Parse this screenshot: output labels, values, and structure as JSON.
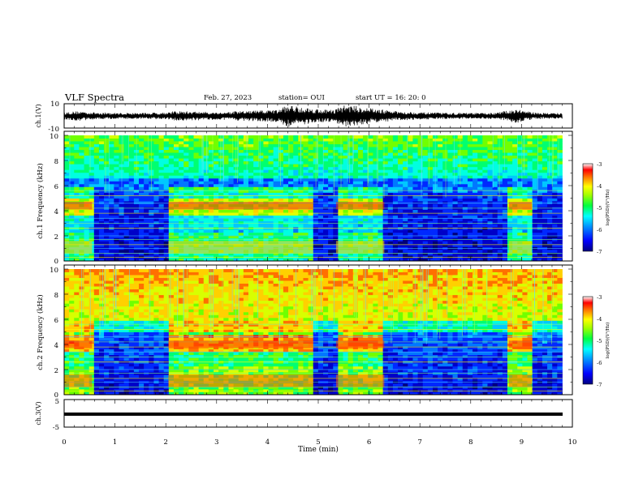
{
  "header": {
    "title": "VLF Spectra",
    "date": "Feb. 27, 2023",
    "station": "station= OUI",
    "start": "start  UT =   16: 20: 0"
  },
  "colorbar": {
    "label": "log(PSD)(V²/Hz)",
    "ticks": [
      "-3",
      "-4",
      "-5",
      "-6",
      "-7"
    ],
    "palette": [
      "#0000a0",
      "#0000ff",
      "#0080ff",
      "#00e0ff",
      "#00ff80",
      "#80ff00",
      "#ffff00",
      "#ff8000",
      "#ff0000",
      "#ffffff"
    ]
  },
  "chart_data": [
    {
      "type": "line",
      "name": "ch1-waveform",
      "ylabel": "ch.1(V)",
      "ylim": [
        -10,
        10
      ],
      "yticks": [
        "10",
        "-10"
      ],
      "x": [
        0.0,
        0.3,
        0.6,
        1.0,
        1.5,
        2.0,
        2.2,
        2.8,
        3.0,
        3.5,
        3.8,
        4.2,
        4.4,
        4.6,
        4.9,
        5.3,
        5.5,
        5.8,
        6.1,
        6.5,
        7.0,
        7.5,
        8.0,
        8.5,
        8.9,
        9.2,
        9.5,
        9.8
      ],
      "envelope": [
        3,
        4,
        3,
        2.5,
        2.5,
        3,
        4,
        3.5,
        3,
        4,
        4.5,
        5,
        9,
        8,
        6,
        5,
        9,
        8,
        6,
        4,
        3,
        2.5,
        2.5,
        2.5,
        6,
        3,
        2.5,
        2.5
      ]
    },
    {
      "type": "heatmap",
      "name": "ch1-spectrogram",
      "ylabel": "ch.1 Frequency (kHz)",
      "ylim": [
        0,
        10
      ],
      "yticks": [
        "0",
        "2",
        "4",
        "6",
        "8",
        "10"
      ],
      "xlim": [
        0,
        10
      ],
      "active_intervals_min": [
        [
          0.0,
          0.55
        ],
        [
          2.05,
          4.9
        ],
        [
          5.35,
          6.3
        ],
        [
          8.75,
          9.2
        ]
      ],
      "broadband_peak_kHz": 4.4,
      "bands_kHz": [
        0.3,
        0.6,
        1.0,
        1.3,
        1.7,
        2.0,
        2.6,
        3.0,
        3.4,
        3.8,
        4.2,
        4.6,
        5.2,
        5.6
      ]
    },
    {
      "type": "heatmap",
      "name": "ch2-spectrogram",
      "ylabel": "ch.2 Frequency (kHz)",
      "ylim": [
        0,
        10
      ],
      "yticks": [
        "0",
        "2",
        "4",
        "6",
        "8",
        "10"
      ],
      "xlim": [
        0,
        10
      ],
      "active_intervals_min": [
        [
          0.0,
          0.55
        ],
        [
          2.05,
          4.9
        ],
        [
          5.35,
          6.3
        ],
        [
          8.75,
          9.2
        ]
      ],
      "broadband_peak_kHz": 4.0,
      "bands_kHz": [
        0.3,
        0.6,
        1.0,
        1.3,
        1.7,
        2.0,
        2.6,
        3.0,
        3.4,
        3.8,
        4.2,
        4.6,
        5.2,
        5.6
      ]
    },
    {
      "type": "line",
      "name": "ch3-waveform",
      "ylabel": "ch.3(V)",
      "ylim": [
        -5,
        5
      ],
      "yticks": [
        "5",
        "-5"
      ],
      "x": [
        0,
        10
      ],
      "y": [
        -0.8,
        -0.8
      ],
      "xlabel": "Time  (min)",
      "xticks": [
        "0",
        "1",
        "2",
        "3",
        "4",
        "5",
        "6",
        "7",
        "8",
        "9",
        "10"
      ]
    }
  ]
}
